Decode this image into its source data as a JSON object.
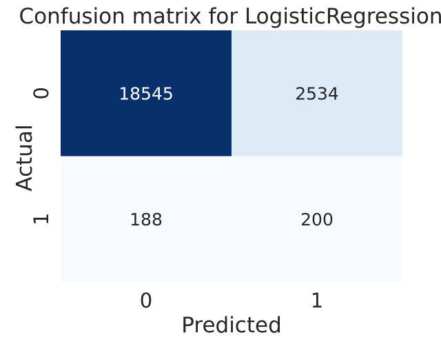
{
  "chart_data": {
    "type": "heatmap",
    "title": "Confusion matrix for LogisticRegression",
    "xlabel": "Predicted",
    "ylabel": "Actual",
    "x_categories": [
      "0",
      "1"
    ],
    "y_categories": [
      "0",
      "1"
    ],
    "values": [
      [
        18545,
        2534
      ],
      [
        188,
        200
      ]
    ],
    "colormap": "Blues",
    "color_low": "#f7fbff",
    "color_high": "#08306b",
    "colorbar": false,
    "grid": false
  }
}
